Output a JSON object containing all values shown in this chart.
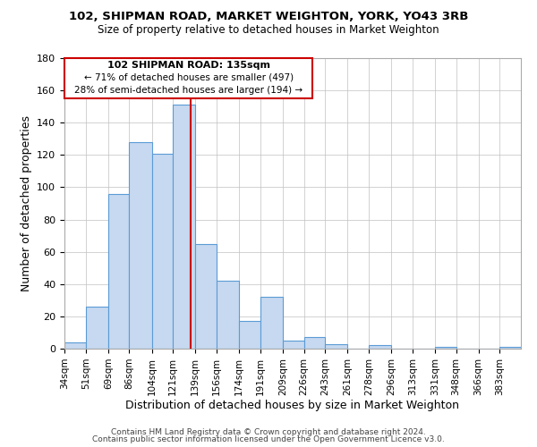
{
  "title": "102, SHIPMAN ROAD, MARKET WEIGHTON, YORK, YO43 3RB",
  "subtitle": "Size of property relative to detached houses in Market Weighton",
  "xlabel": "Distribution of detached houses by size in Market Weighton",
  "ylabel": "Number of detached properties",
  "bar_labels": [
    "34sqm",
    "51sqm",
    "69sqm",
    "86sqm",
    "104sqm",
    "121sqm",
    "139sqm",
    "156sqm",
    "174sqm",
    "191sqm",
    "209sqm",
    "226sqm",
    "243sqm",
    "261sqm",
    "278sqm",
    "296sqm",
    "313sqm",
    "331sqm",
    "348sqm",
    "366sqm",
    "383sqm"
  ],
  "bar_values": [
    4,
    26,
    96,
    128,
    121,
    151,
    65,
    42,
    17,
    32,
    5,
    7,
    3,
    0,
    2,
    0,
    0,
    1,
    0,
    0,
    1
  ],
  "bar_color": "#c6d9f0",
  "bar_edge_color": "#5b9bd5",
  "ylim": [
    0,
    180
  ],
  "yticks": [
    0,
    20,
    40,
    60,
    80,
    100,
    120,
    140,
    160,
    180
  ],
  "property_size": 135,
  "property_label": "102 SHIPMAN ROAD: 135sqm",
  "annotation_line1": "← 71% of detached houses are smaller (497)",
  "annotation_line2": "28% of semi-detached houses are larger (194) →",
  "vline_color": "#cc0000",
  "annotation_box_edge": "#cc0000",
  "footnote1": "Contains HM Land Registry data © Crown copyright and database right 2024.",
  "footnote2": "Contains public sector information licensed under the Open Government Licence v3.0.",
  "bin_edges": [
    34,
    51,
    69,
    86,
    104,
    121,
    139,
    156,
    174,
    191,
    209,
    226,
    243,
    261,
    278,
    296,
    313,
    331,
    348,
    366,
    383,
    400
  ]
}
